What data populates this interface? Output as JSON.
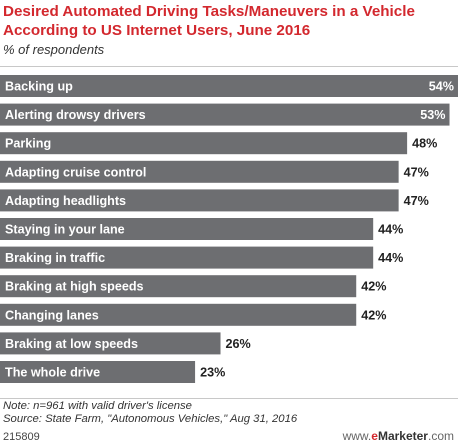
{
  "title": "Desired Automated Driving Tasks/Maneuvers in a Vehicle According to US Internet Users, June 2016",
  "subtitle": "% of respondents",
  "chart_data": {
    "type": "bar",
    "orientation": "horizontal",
    "categories": [
      "Backing up",
      "Alerting drowsy drivers",
      "Parking",
      "Adapting cruise control",
      "Adapting headlights",
      "Staying in your lane",
      "Braking in traffic",
      "Braking at high speeds",
      "Changing lanes",
      "Braking at low speeds",
      "The whole drive"
    ],
    "values": [
      54,
      53,
      48,
      47,
      47,
      44,
      44,
      42,
      42,
      26,
      23
    ],
    "value_labels": [
      "54%",
      "53%",
      "48%",
      "47%",
      "47%",
      "44%",
      "44%",
      "42%",
      "42%",
      "26%",
      "23%"
    ],
    "bar_color": "#6d6e71",
    "xlim": [
      0,
      54
    ]
  },
  "note": "Note: n=961 with valid driver's license",
  "source": "Source: State Farm, \"Autonomous Vehicles,\" Aug 31, 2016",
  "chart_id": "215809",
  "brand": {
    "prefix": "www.",
    "e": "e",
    "marketer": "Marketer",
    "suffix": ".com"
  }
}
